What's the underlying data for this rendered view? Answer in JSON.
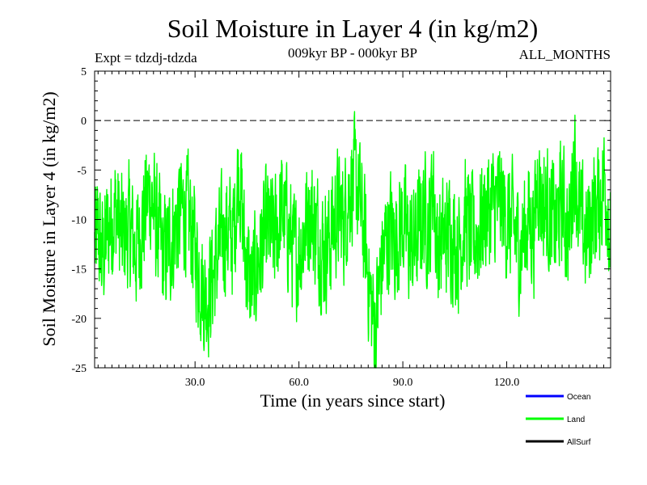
{
  "chart_data": {
    "type": "line",
    "title": "Soil Moisture in Layer 4 (in kg/m2)",
    "subtitle_left": "Expt = tdzdj-tdzda",
    "subtitle_center": "009kyr BP - 000kyr BP",
    "subtitle_right": "ALL_MONTHS",
    "xlabel": "Time (in years since start)",
    "ylabel": "Soil Moisture in Layer 4 (in kg/m2)",
    "xlim": [
      1,
      150
    ],
    "ylim": [
      -25,
      5
    ],
    "x_ticks": [
      30,
      60,
      90,
      120
    ],
    "x_tick_labels": [
      "30.0",
      "60.0",
      "90.0",
      "120.0"
    ],
    "y_ticks": [
      5,
      0,
      -5,
      -10,
      -15,
      -20,
      -25
    ],
    "y_tick_labels": [
      "5",
      "0",
      "-5",
      "-10",
      "-15",
      "-20",
      "-25"
    ],
    "reference_line": {
      "y": 0,
      "style": "dashed"
    },
    "legend": [
      {
        "name": "Ocean",
        "color": "#0000ff"
      },
      {
        "name": "Land",
        "color": "#00ff00"
      },
      {
        "name": "AllSurf",
        "color": "#000000"
      }
    ],
    "series": [
      {
        "name": "Land",
        "color": "#00ff00",
        "x_start": 1,
        "x_step": 0.0833,
        "anchor_x": [
          1,
          2,
          3,
          5,
          7,
          9,
          11,
          13,
          15,
          17,
          19,
          21,
          23,
          25,
          27,
          29,
          31,
          33,
          35,
          37,
          39,
          41,
          42.7,
          44,
          46,
          47,
          49,
          51,
          53,
          55,
          57,
          59,
          61,
          63,
          65,
          67,
          69,
          71,
          73,
          75,
          77,
          79,
          81,
          82,
          84,
          86,
          88,
          90,
          92,
          94,
          96,
          98,
          98.5,
          100,
          102,
          104,
          106,
          108,
          110,
          112,
          114,
          116,
          118,
          120,
          122,
          124,
          126,
          128,
          129,
          130,
          132,
          134,
          136,
          138,
          139.5,
          141,
          143,
          145,
          147,
          148,
          149,
          150
        ],
        "anchor_y": [
          -13,
          -11,
          -14,
          -11,
          -9,
          -12,
          -11,
          -13,
          -10,
          -7,
          -11,
          -14,
          -12,
          -10,
          -9,
          -11,
          -15,
          -18,
          -16,
          -13,
          -11,
          -12,
          -4,
          -12,
          -17,
          -16,
          -13,
          -11,
          -12,
          -9,
          -11,
          -14,
          -12,
          -9,
          -11,
          -13,
          -12,
          -9,
          -10,
          -6,
          -7,
          -12,
          -19,
          -21,
          -14,
          -11,
          -12,
          -10,
          -13,
          -12,
          -9,
          -11,
          -5,
          -13,
          -12,
          -11,
          -13,
          -10,
          -12,
          -11,
          -9,
          -9,
          -8,
          -10,
          -11,
          -13,
          -10,
          -11,
          -5,
          -8,
          -9,
          -11,
          -8,
          -12,
          -3,
          -10,
          -12,
          -9,
          -8,
          -6,
          -7,
          -13
        ]
      }
    ]
  }
}
